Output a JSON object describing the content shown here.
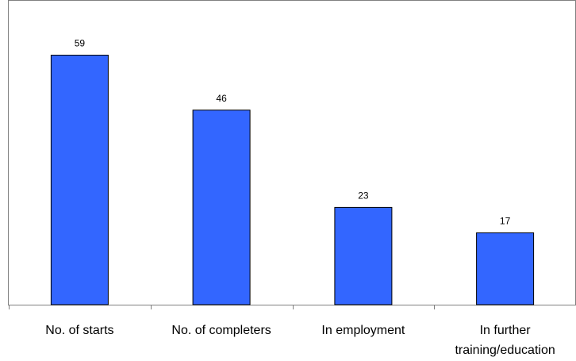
{
  "chart_data": {
    "type": "bar",
    "categories": [
      [
        "No. of starts"
      ],
      [
        "No. of completers"
      ],
      [
        "In employment"
      ],
      [
        "In further",
        "training/education"
      ]
    ],
    "values": [
      59,
      46,
      23,
      17
    ],
    "data_labels": [
      "59",
      "46",
      "23",
      "17"
    ],
    "ylim": [
      0,
      70
    ],
    "grid": false,
    "legend": "none",
    "bar_color": "#3366ff",
    "bar_outline": "#000000",
    "axis_color": "#808080"
  }
}
